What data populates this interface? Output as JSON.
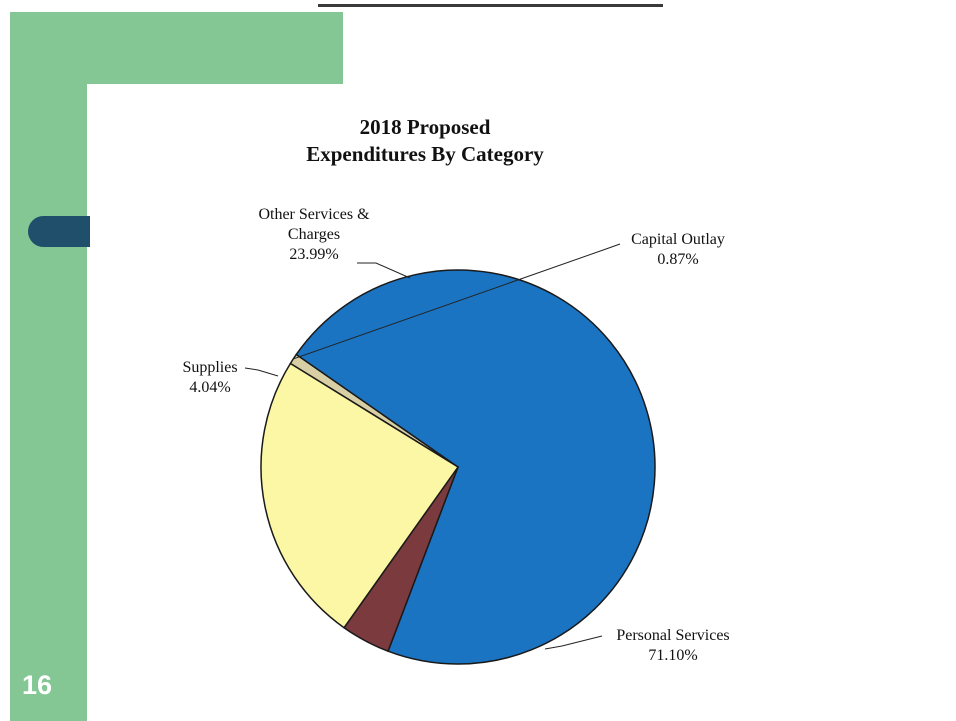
{
  "slide": {
    "page_number": "16",
    "colors": {
      "green_accent": "#84c795",
      "tab_blue": "#1f4f6b",
      "rule": "#3a3a3a"
    }
  },
  "chart_data": {
    "type": "pie",
    "title": [
      "2018 Proposed",
      "Expenditures By Category"
    ],
    "legend": "none",
    "slices": [
      {
        "name": "Capital Outlay",
        "value": 0.87,
        "label_lines": [
          "Capital Outlay",
          "0.87%"
        ],
        "color": "#d8d0a4"
      },
      {
        "name": "Personal Services",
        "value": 71.1,
        "label_lines": [
          "Personal Services",
          "71.10%"
        ],
        "color": "#1b74c2"
      },
      {
        "name": "Supplies",
        "value": 4.04,
        "label_lines": [
          "Supplies",
          "4.04%"
        ],
        "color": "#7b3a3e"
      },
      {
        "name": "Other Services & Charges",
        "value": 23.99,
        "label_lines": [
          "Other Services &",
          "Charges",
          "23.99%"
        ],
        "color": "#fbf7a4"
      }
    ]
  }
}
